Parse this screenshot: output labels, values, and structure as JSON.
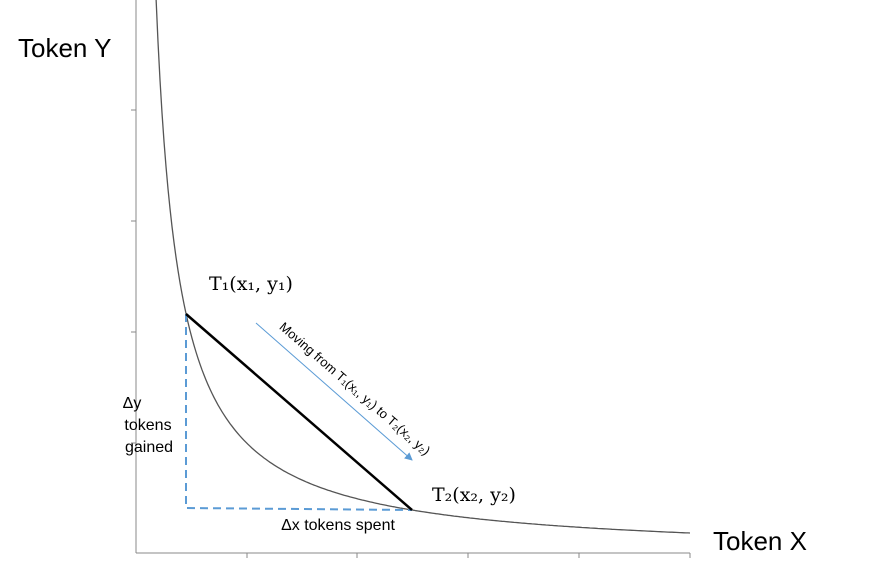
{
  "axes": {
    "y_label": "Token Y",
    "x_label": "Token X"
  },
  "points": [
    {
      "label": "T₁(x₁, y₁)"
    },
    {
      "label": "T₂(x₂, y₂)"
    }
  ],
  "arrow": {
    "label": "Moving from T₁(x₁, y₁) to T₂(x₂, y₂)"
  },
  "delta_y": {
    "label": [
      "Δy",
      "tokens",
      "gained"
    ]
  },
  "delta_x": {
    "label": "Δx tokens spent"
  }
}
